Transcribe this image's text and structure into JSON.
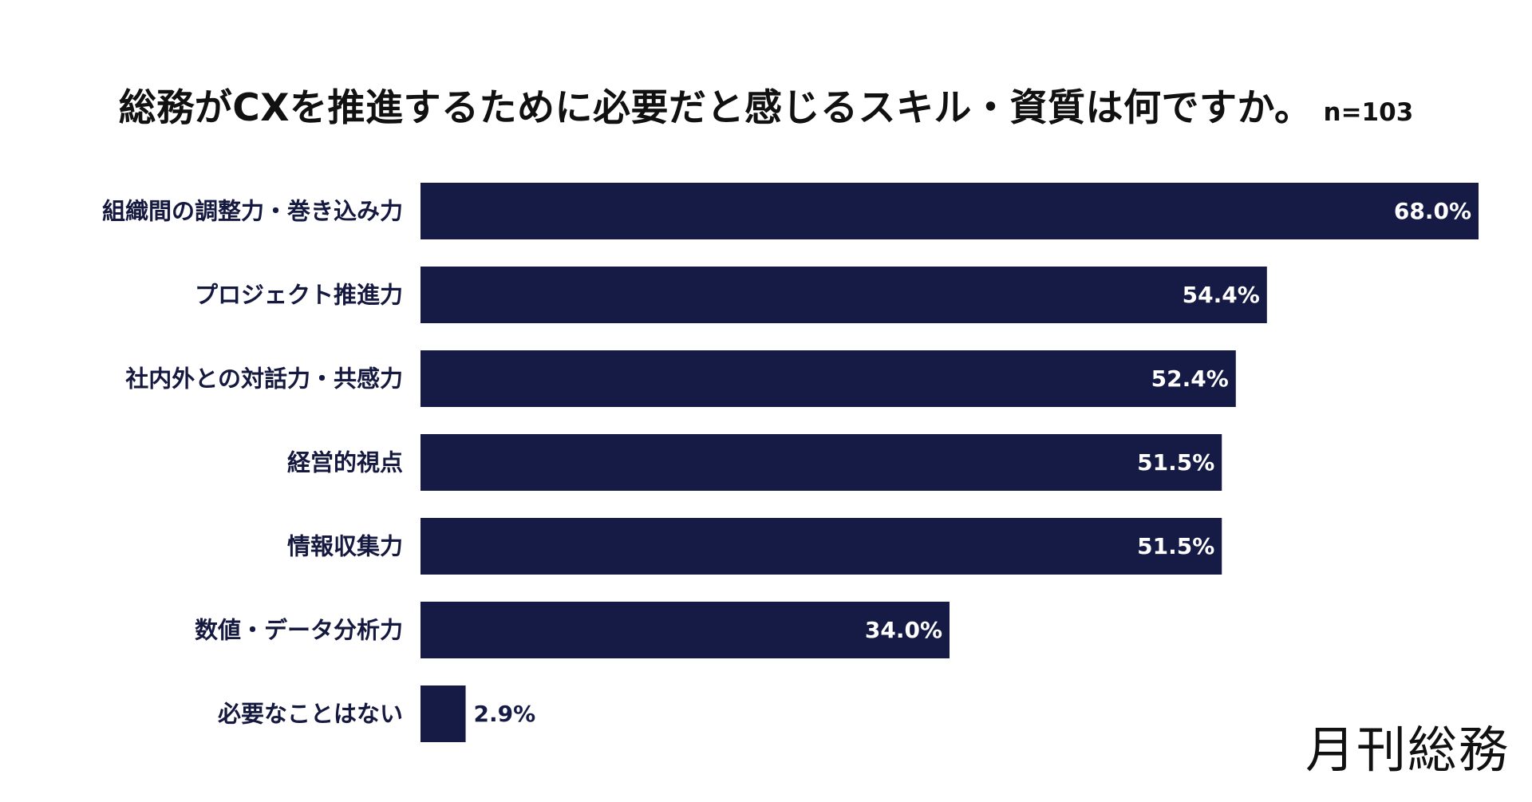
{
  "header": {
    "title": "総務がCXを推進するために必要だと感じるスキル・資質は何ですか。",
    "sample_size": "n=103"
  },
  "brand": {
    "logo_text": "月刊総務"
  },
  "colors": {
    "bar": "#151b45",
    "label_text": "#16193f",
    "value_inside": "#ffffff",
    "value_outside": "#151b45"
  },
  "chart_data": {
    "type": "bar",
    "orientation": "horizontal",
    "categories": [
      "組織間の調整力・巻き込み力",
      "プロジェクト推進力",
      "社内外との対話力・共感力",
      "経営的視点",
      "情報収集力",
      "数値・データ分析力",
      "必要なことはない"
    ],
    "values": [
      68.0,
      54.4,
      52.4,
      51.5,
      51.5,
      34.0,
      2.9
    ],
    "value_labels": [
      "68.0%",
      "54.4%",
      "52.4%",
      "51.5%",
      "51.5%",
      "34.0%",
      "2.9%"
    ],
    "xlim": [
      0,
      68.0
    ],
    "grid": false,
    "legend": "none"
  }
}
